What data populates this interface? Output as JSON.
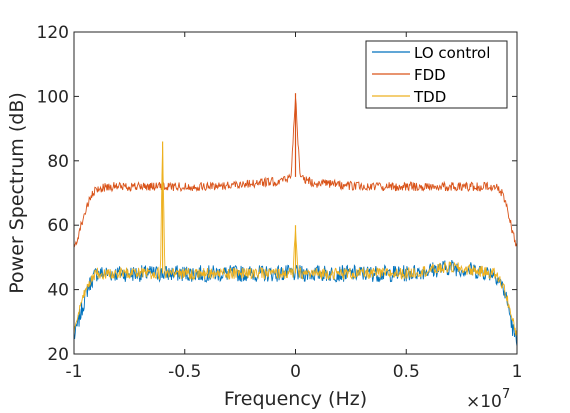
{
  "chart_data": {
    "type": "line",
    "xlabel": "Frequency (Hz)",
    "ylabel": "Power Spectrum (dB)",
    "x_exponent_label": "×10",
    "x_exponent_power": "7",
    "x_scale_factor": 10000000,
    "xlim": [
      -1,
      1
    ],
    "ylim": [
      20,
      120
    ],
    "xticks": [
      -1,
      -0.5,
      0,
      0.5,
      1
    ],
    "xtick_labels": [
      "-1",
      "-0.5",
      "0",
      "0.5",
      "1"
    ],
    "yticks": [
      20,
      40,
      60,
      80,
      100,
      120
    ],
    "ytick_labels": [
      "20",
      "40",
      "60",
      "80",
      "100",
      "120"
    ],
    "grid": false,
    "legend_position": "top-right",
    "series": [
      {
        "name": "LO control",
        "color": "#0072BD",
        "x": [
          -1.0,
          -0.98,
          -0.96,
          -0.94,
          -0.92,
          -0.9,
          -0.8,
          -0.7,
          -0.6,
          -0.5,
          -0.4,
          -0.3,
          -0.2,
          -0.1,
          0.0,
          0.1,
          0.2,
          0.3,
          0.4,
          0.5,
          0.6,
          0.7,
          0.8,
          0.9,
          0.92,
          0.94,
          0.96,
          0.98,
          1.0
        ],
        "values": [
          25,
          30,
          35,
          40,
          43,
          45,
          45,
          45,
          45,
          45,
          45,
          45,
          45,
          45,
          45,
          45,
          45,
          45,
          45,
          45,
          46,
          47,
          46,
          45,
          43,
          40,
          35,
          28,
          23
        ]
      },
      {
        "name": "FDD",
        "color": "#D95319",
        "x": [
          -1.0,
          -0.98,
          -0.96,
          -0.94,
          -0.92,
          -0.9,
          -0.85,
          -0.8,
          -0.7,
          -0.6,
          -0.5,
          -0.4,
          -0.3,
          -0.2,
          -0.1,
          -0.05,
          -0.02,
          0.0,
          0.02,
          0.05,
          0.1,
          0.2,
          0.3,
          0.4,
          0.5,
          0.6,
          0.7,
          0.8,
          0.85,
          0.9,
          0.92,
          0.94,
          0.96,
          0.98,
          1.0
        ],
        "values": [
          53,
          57,
          62,
          66,
          69,
          71,
          72,
          72,
          72,
          72,
          72,
          72,
          72.5,
          73,
          73.5,
          74,
          75,
          101,
          75,
          74,
          73,
          72.5,
          72,
          72,
          72,
          72,
          72,
          72,
          72,
          72,
          71,
          69,
          64,
          58,
          53
        ]
      },
      {
        "name": "TDD",
        "color": "#EDB120",
        "x": [
          -1.0,
          -0.98,
          -0.96,
          -0.94,
          -0.92,
          -0.9,
          -0.8,
          -0.7,
          -0.61,
          -0.6,
          -0.59,
          -0.5,
          -0.4,
          -0.3,
          -0.2,
          -0.1,
          -0.01,
          0.0,
          0.01,
          0.1,
          0.2,
          0.3,
          0.4,
          0.5,
          0.6,
          0.7,
          0.8,
          0.9,
          0.92,
          0.94,
          0.96,
          0.98,
          1.0
        ],
        "values": [
          27,
          32,
          37,
          41,
          44,
          45,
          45,
          45,
          45,
          86,
          45,
          45,
          45,
          45,
          45,
          45,
          45,
          60,
          45,
          45,
          45,
          45,
          45,
          45,
          46,
          47,
          46,
          45,
          43,
          41,
          36,
          30,
          26
        ]
      }
    ]
  }
}
